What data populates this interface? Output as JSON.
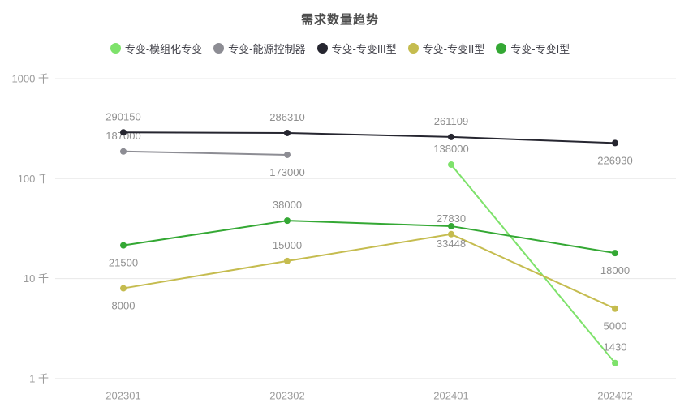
{
  "title": "需求数量趋势",
  "colors": {
    "background": "#ffffff",
    "title_text": "#4e4e4e",
    "legend_text": "#42424a",
    "axis_label": "#9b9b9b",
    "data_label": "#8f8f8f",
    "gridline": "#e8e8e8"
  },
  "chart_data": {
    "type": "line",
    "log_scale": true,
    "grid": true,
    "legend_position": "top",
    "title": "需求数量趋势",
    "xlabel": "",
    "ylabel": "",
    "ylim": [
      1000,
      1000000
    ],
    "y_ticks": [
      "1 千",
      "10 千",
      "100 千",
      "1000 千"
    ],
    "categories": [
      "202301",
      "202302",
      "202401",
      "202402"
    ],
    "series": [
      {
        "name": "专变-模组化专变",
        "color": "#7ee26b",
        "points": [
          {
            "x": "202401",
            "value": 138000,
            "label": "138000",
            "label_pos": "above"
          },
          {
            "x": "202402",
            "value": 1430,
            "label": "1430",
            "label_pos": "above"
          }
        ]
      },
      {
        "name": "专变-能源控制器",
        "color": "#8d8d94",
        "points": [
          {
            "x": "202301",
            "value": 187000,
            "label": "187000",
            "label_pos": "above"
          },
          {
            "x": "202302",
            "value": 173000,
            "label": "173000",
            "label_pos": "below"
          }
        ]
      },
      {
        "name": "专变-专变III型",
        "color": "#262630",
        "points": [
          {
            "x": "202301",
            "value": 290150,
            "label": "290150",
            "label_pos": "above"
          },
          {
            "x": "202302",
            "value": 286310,
            "label": "286310",
            "label_pos": "above"
          },
          {
            "x": "202401",
            "value": 261109,
            "label": "261109",
            "label_pos": "above"
          },
          {
            "x": "202402",
            "value": 226930,
            "label": "226930",
            "label_pos": "below"
          }
        ]
      },
      {
        "name": "专变-专变II型",
        "color": "#c5bc4f",
        "points": [
          {
            "x": "202301",
            "value": 8000,
            "label": "8000",
            "label_pos": "below"
          },
          {
            "x": "202302",
            "value": 15000,
            "label": "15000",
            "label_pos": "above"
          },
          {
            "x": "202401",
            "value": 27830,
            "label": "27830",
            "label_pos": "above"
          },
          {
            "x": "202402",
            "value": 5000,
            "label": "5000",
            "label_pos": "below"
          }
        ]
      },
      {
        "name": "专变-专变I型",
        "color": "#34a834",
        "points": [
          {
            "x": "202301",
            "value": 21500,
            "label": "21500",
            "label_pos": "below"
          },
          {
            "x": "202302",
            "value": 38000,
            "label": "38000",
            "label_pos": "above"
          },
          {
            "x": "202401",
            "value": 33448,
            "label": "33448",
            "label_pos": "below"
          },
          {
            "x": "202402",
            "value": 18000,
            "label": "18000",
            "label_pos": "below"
          }
        ]
      }
    ]
  }
}
